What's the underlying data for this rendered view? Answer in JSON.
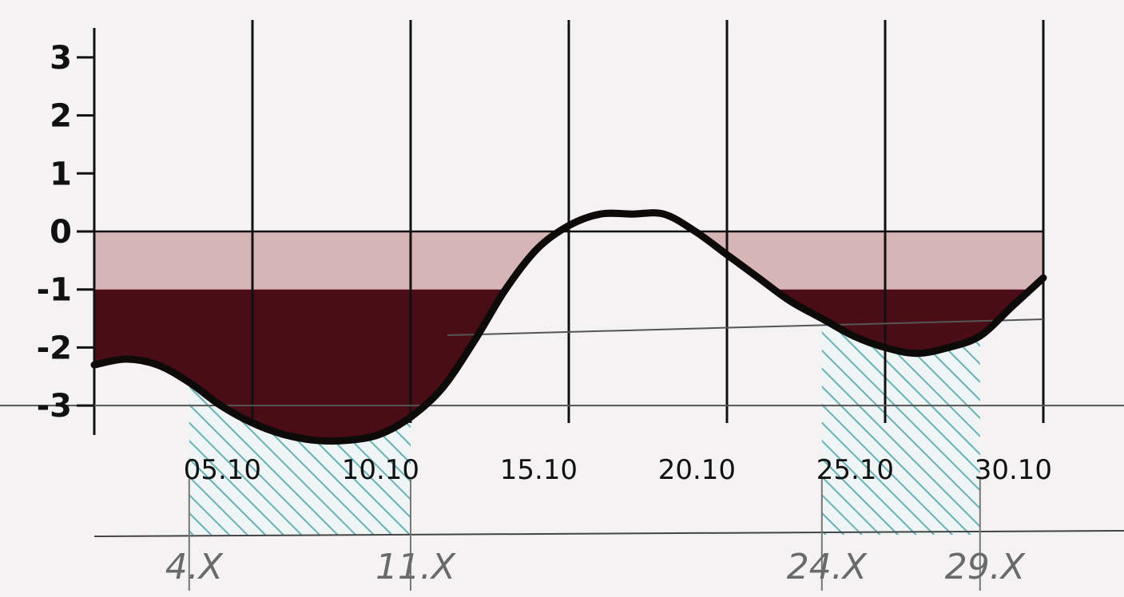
{
  "chart_data": {
    "type": "line",
    "title": "",
    "xlabel": "",
    "ylabel": "",
    "ylim": [
      -3,
      3
    ],
    "yticks": [
      "3",
      "2",
      "1",
      "0",
      "-1",
      "-2",
      "-3"
    ],
    "x_tick_labels": [
      "05.10",
      "10.10",
      "15.10",
      "20.10",
      "25.10",
      "30.10"
    ],
    "handwritten_labels": [
      "4.X",
      "11.X",
      "24.X",
      "29.X"
    ],
    "series": [
      {
        "x": [
          "01.10",
          "02.10",
          "03.10",
          "04.10",
          "05.10",
          "06.10",
          "07.10",
          "08.10",
          "09.10",
          "10.10",
          "11.10",
          "12.10",
          "13.10",
          "14.10",
          "15.10",
          "16.10",
          "17.10",
          "18.10",
          "19.10",
          "20.10",
          "21.10",
          "22.10",
          "23.10",
          "24.10",
          "25.10",
          "26.10",
          "27.10",
          "28.10",
          "29.10",
          "30.10",
          "31.10"
        ],
        "values": [
          -2.3,
          -2.2,
          -2.3,
          -2.6,
          -3.0,
          -3.3,
          -3.5,
          -3.6,
          -3.6,
          -3.5,
          -3.2,
          -2.7,
          -1.9,
          -1.0,
          -0.3,
          0.1,
          0.3,
          0.3,
          0.3,
          0.0,
          -0.4,
          -0.8,
          -1.2,
          -1.5,
          -1.8,
          -2.0,
          -2.1,
          -2.0,
          -1.8,
          -1.3,
          -0.8
        ]
      }
    ],
    "shaded_below_zero": true,
    "highlight_periods": [
      {
        "start": "4.X",
        "end": "11.X"
      },
      {
        "start": "24.X",
        "end": "29.X"
      }
    ],
    "grid": true,
    "colors": {
      "line": "#0d0a0a",
      "deficit_light": "#d7b4b6",
      "deficit_dark": "#4a0d16",
      "hatch": "#4fa6aa",
      "paper": "#f4f2f2"
    }
  }
}
